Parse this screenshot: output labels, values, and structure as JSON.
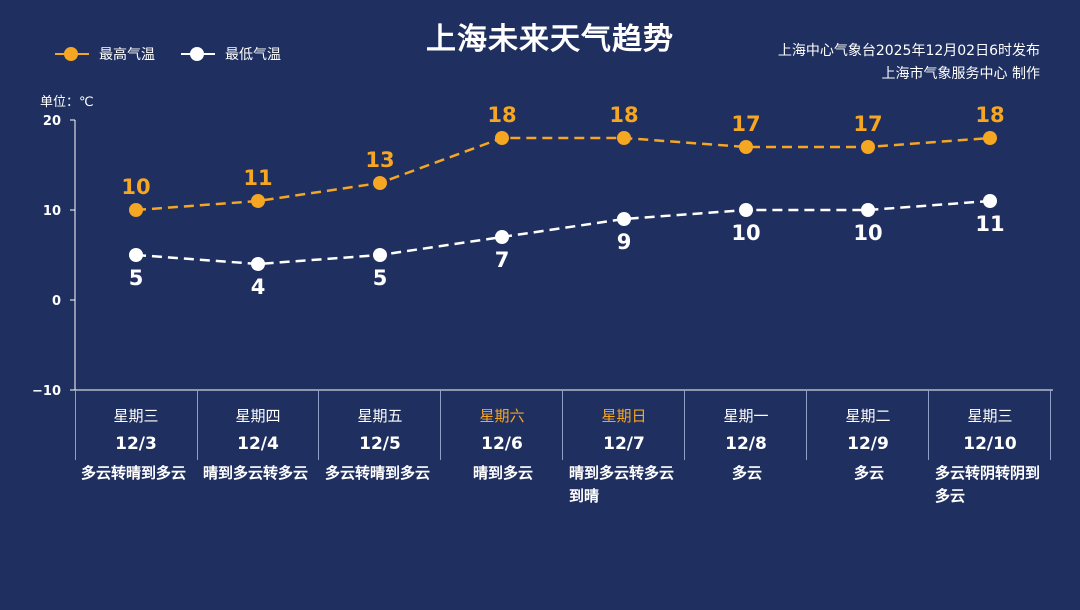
{
  "title": "上海未来天气趋势",
  "legend": {
    "high_label": "最高气温",
    "low_label": "最低气温"
  },
  "source": {
    "line1": "上海中心气象台2025年12月02日6时发布",
    "line2": "上海市气象服务中心  制作"
  },
  "unit_label": "单位：℃",
  "colors": {
    "background": "#1f2f5f",
    "high": "#f5a623",
    "low": "#ffffff",
    "weekend": "#f5a623"
  },
  "chart_data": {
    "type": "line",
    "categories": [
      "12/3",
      "12/4",
      "12/5",
      "12/6",
      "12/7",
      "12/8",
      "12/9",
      "12/10"
    ],
    "series": [
      {
        "name": "最高气温",
        "values": [
          10,
          11,
          13,
          18,
          18,
          17,
          17,
          18
        ]
      },
      {
        "name": "最低气温",
        "values": [
          5,
          4,
          5,
          7,
          9,
          10,
          10,
          11
        ]
      }
    ],
    "ylim": [
      -10,
      20
    ],
    "yticks": [
      "20",
      "10",
      "0",
      "−10"
    ],
    "ytick_values": [
      20,
      10,
      0,
      -10
    ],
    "ylabel": "单位：℃",
    "line_style": "dashed",
    "legend_position": "top-left",
    "grid": false
  },
  "days": [
    {
      "weekday": "星期三",
      "date": "12/3",
      "weather": "多云转晴到多云",
      "weekend": false,
      "center": false
    },
    {
      "weekday": "星期四",
      "date": "12/4",
      "weather": "晴到多云转多云",
      "weekend": false,
      "center": false
    },
    {
      "weekday": "星期五",
      "date": "12/5",
      "weather": "多云转晴到多云",
      "weekend": false,
      "center": false
    },
    {
      "weekday": "星期六",
      "date": "12/6",
      "weather": "晴到多云",
      "weekend": true,
      "center": true
    },
    {
      "weekday": "星期日",
      "date": "12/7",
      "weather": "晴到多云转多云到晴",
      "weekend": true,
      "center": false
    },
    {
      "weekday": "星期一",
      "date": "12/8",
      "weather": "多云",
      "weekend": false,
      "center": true
    },
    {
      "weekday": "星期二",
      "date": "12/9",
      "weather": "多云",
      "weekend": false,
      "center": true
    },
    {
      "weekday": "星期三",
      "date": "12/10",
      "weather": "多云转阴转阴到多云",
      "weekend": false,
      "center": false
    }
  ]
}
